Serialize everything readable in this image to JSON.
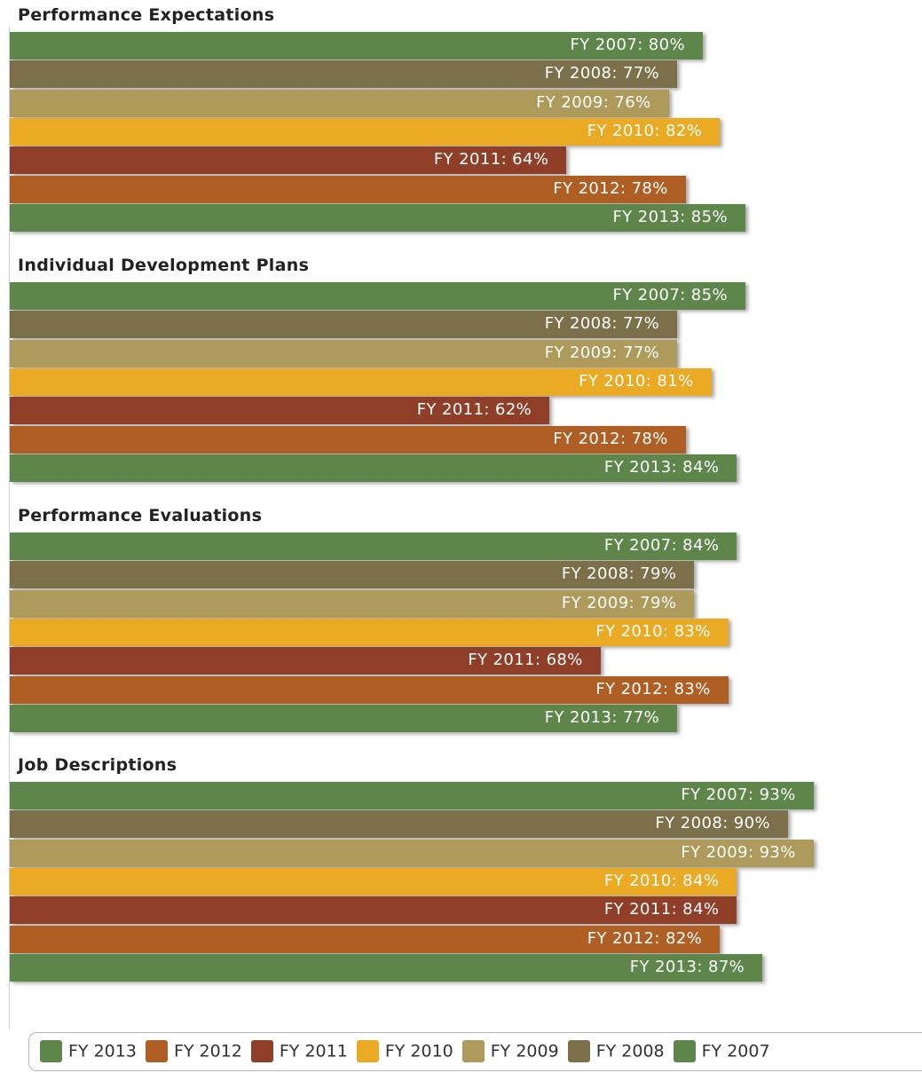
{
  "chart_data": {
    "type": "bar",
    "orientation": "horizontal",
    "xlim": [
      0,
      100
    ],
    "grid": false,
    "legend_position": "bottom",
    "groups": [
      {
        "title": "Performance Expectations",
        "bars": [
          {
            "series": "FY 2007",
            "value": 80,
            "label": "FY 2007: 80%"
          },
          {
            "series": "FY 2008",
            "value": 77,
            "label": "FY 2008: 77%"
          },
          {
            "series": "FY 2009",
            "value": 76,
            "label": "FY 2009: 76%"
          },
          {
            "series": "FY 2010",
            "value": 82,
            "label": "FY 2010: 82%"
          },
          {
            "series": "FY 2011",
            "value": 64,
            "label": "FY 2011: 64%"
          },
          {
            "series": "FY 2012",
            "value": 78,
            "label": "FY 2012: 78%"
          },
          {
            "series": "FY 2013",
            "value": 85,
            "label": "FY 2013: 85%"
          }
        ]
      },
      {
        "title": "Individual Development Plans",
        "bars": [
          {
            "series": "FY 2007",
            "value": 85,
            "label": "FY 2007: 85%"
          },
          {
            "series": "FY 2008",
            "value": 77,
            "label": "FY 2008: 77%"
          },
          {
            "series": "FY 2009",
            "value": 77,
            "label": "FY 2009: 77%"
          },
          {
            "series": "FY 2010",
            "value": 81,
            "label": "FY 2010: 81%"
          },
          {
            "series": "FY 2011",
            "value": 62,
            "label": "FY 2011: 62%"
          },
          {
            "series": "FY 2012",
            "value": 78,
            "label": "FY 2012: 78%"
          },
          {
            "series": "FY 2013",
            "value": 84,
            "label": "FY 2013: 84%"
          }
        ]
      },
      {
        "title": "Performance Evaluations",
        "bars": [
          {
            "series": "FY 2007",
            "value": 84,
            "label": "FY 2007: 84%"
          },
          {
            "series": "FY 2008",
            "value": 79,
            "label": "FY 2008: 79%"
          },
          {
            "series": "FY 2009",
            "value": 79,
            "label": "FY 2009: 79%"
          },
          {
            "series": "FY 2010",
            "value": 83,
            "label": "FY 2010: 83%"
          },
          {
            "series": "FY 2011",
            "value": 68,
            "label": "FY 2011: 68%"
          },
          {
            "series": "FY 2012",
            "value": 83,
            "label": "FY 2012: 83%"
          },
          {
            "series": "FY 2013",
            "value": 77,
            "label": "FY 2013: 77%"
          }
        ]
      },
      {
        "title": "Job Descriptions",
        "bars": [
          {
            "series": "FY 2007",
            "value": 93,
            "label": "FY 2007: 93%"
          },
          {
            "series": "FY 2008",
            "value": 90,
            "label": "FY 2008: 90%"
          },
          {
            "series": "FY 2009",
            "value": 93,
            "label": "FY 2009: 93%"
          },
          {
            "series": "FY 2010",
            "value": 84,
            "label": "FY 2010: 84%"
          },
          {
            "series": "FY 2011",
            "value": 84,
            "label": "FY 2011: 84%"
          },
          {
            "series": "FY 2012",
            "value": 82,
            "label": "FY 2012: 82%"
          },
          {
            "series": "FY 2013",
            "value": 87,
            "label": "FY 2013: 87%"
          }
        ]
      }
    ],
    "legend": [
      {
        "name": "FY 2013",
        "color": "#5e864b"
      },
      {
        "name": "FY 2012",
        "color": "#b05f24"
      },
      {
        "name": "FY 2011",
        "color": "#8f3f28"
      },
      {
        "name": "FY 2010",
        "color": "#eaaa24"
      },
      {
        "name": "FY 2009",
        "color": "#ae9a5b"
      },
      {
        "name": "FY 2008",
        "color": "#7b7049"
      },
      {
        "name": "FY 2007",
        "color": "#5e864b"
      }
    ],
    "series_colors": {
      "FY 2007": "#5e864b",
      "FY 2008": "#7b7049",
      "FY 2009": "#ae9a5b",
      "FY 2010": "#eaaa24",
      "FY 2011": "#8f3f28",
      "FY 2012": "#b05f24",
      "FY 2013": "#5e864b"
    }
  }
}
